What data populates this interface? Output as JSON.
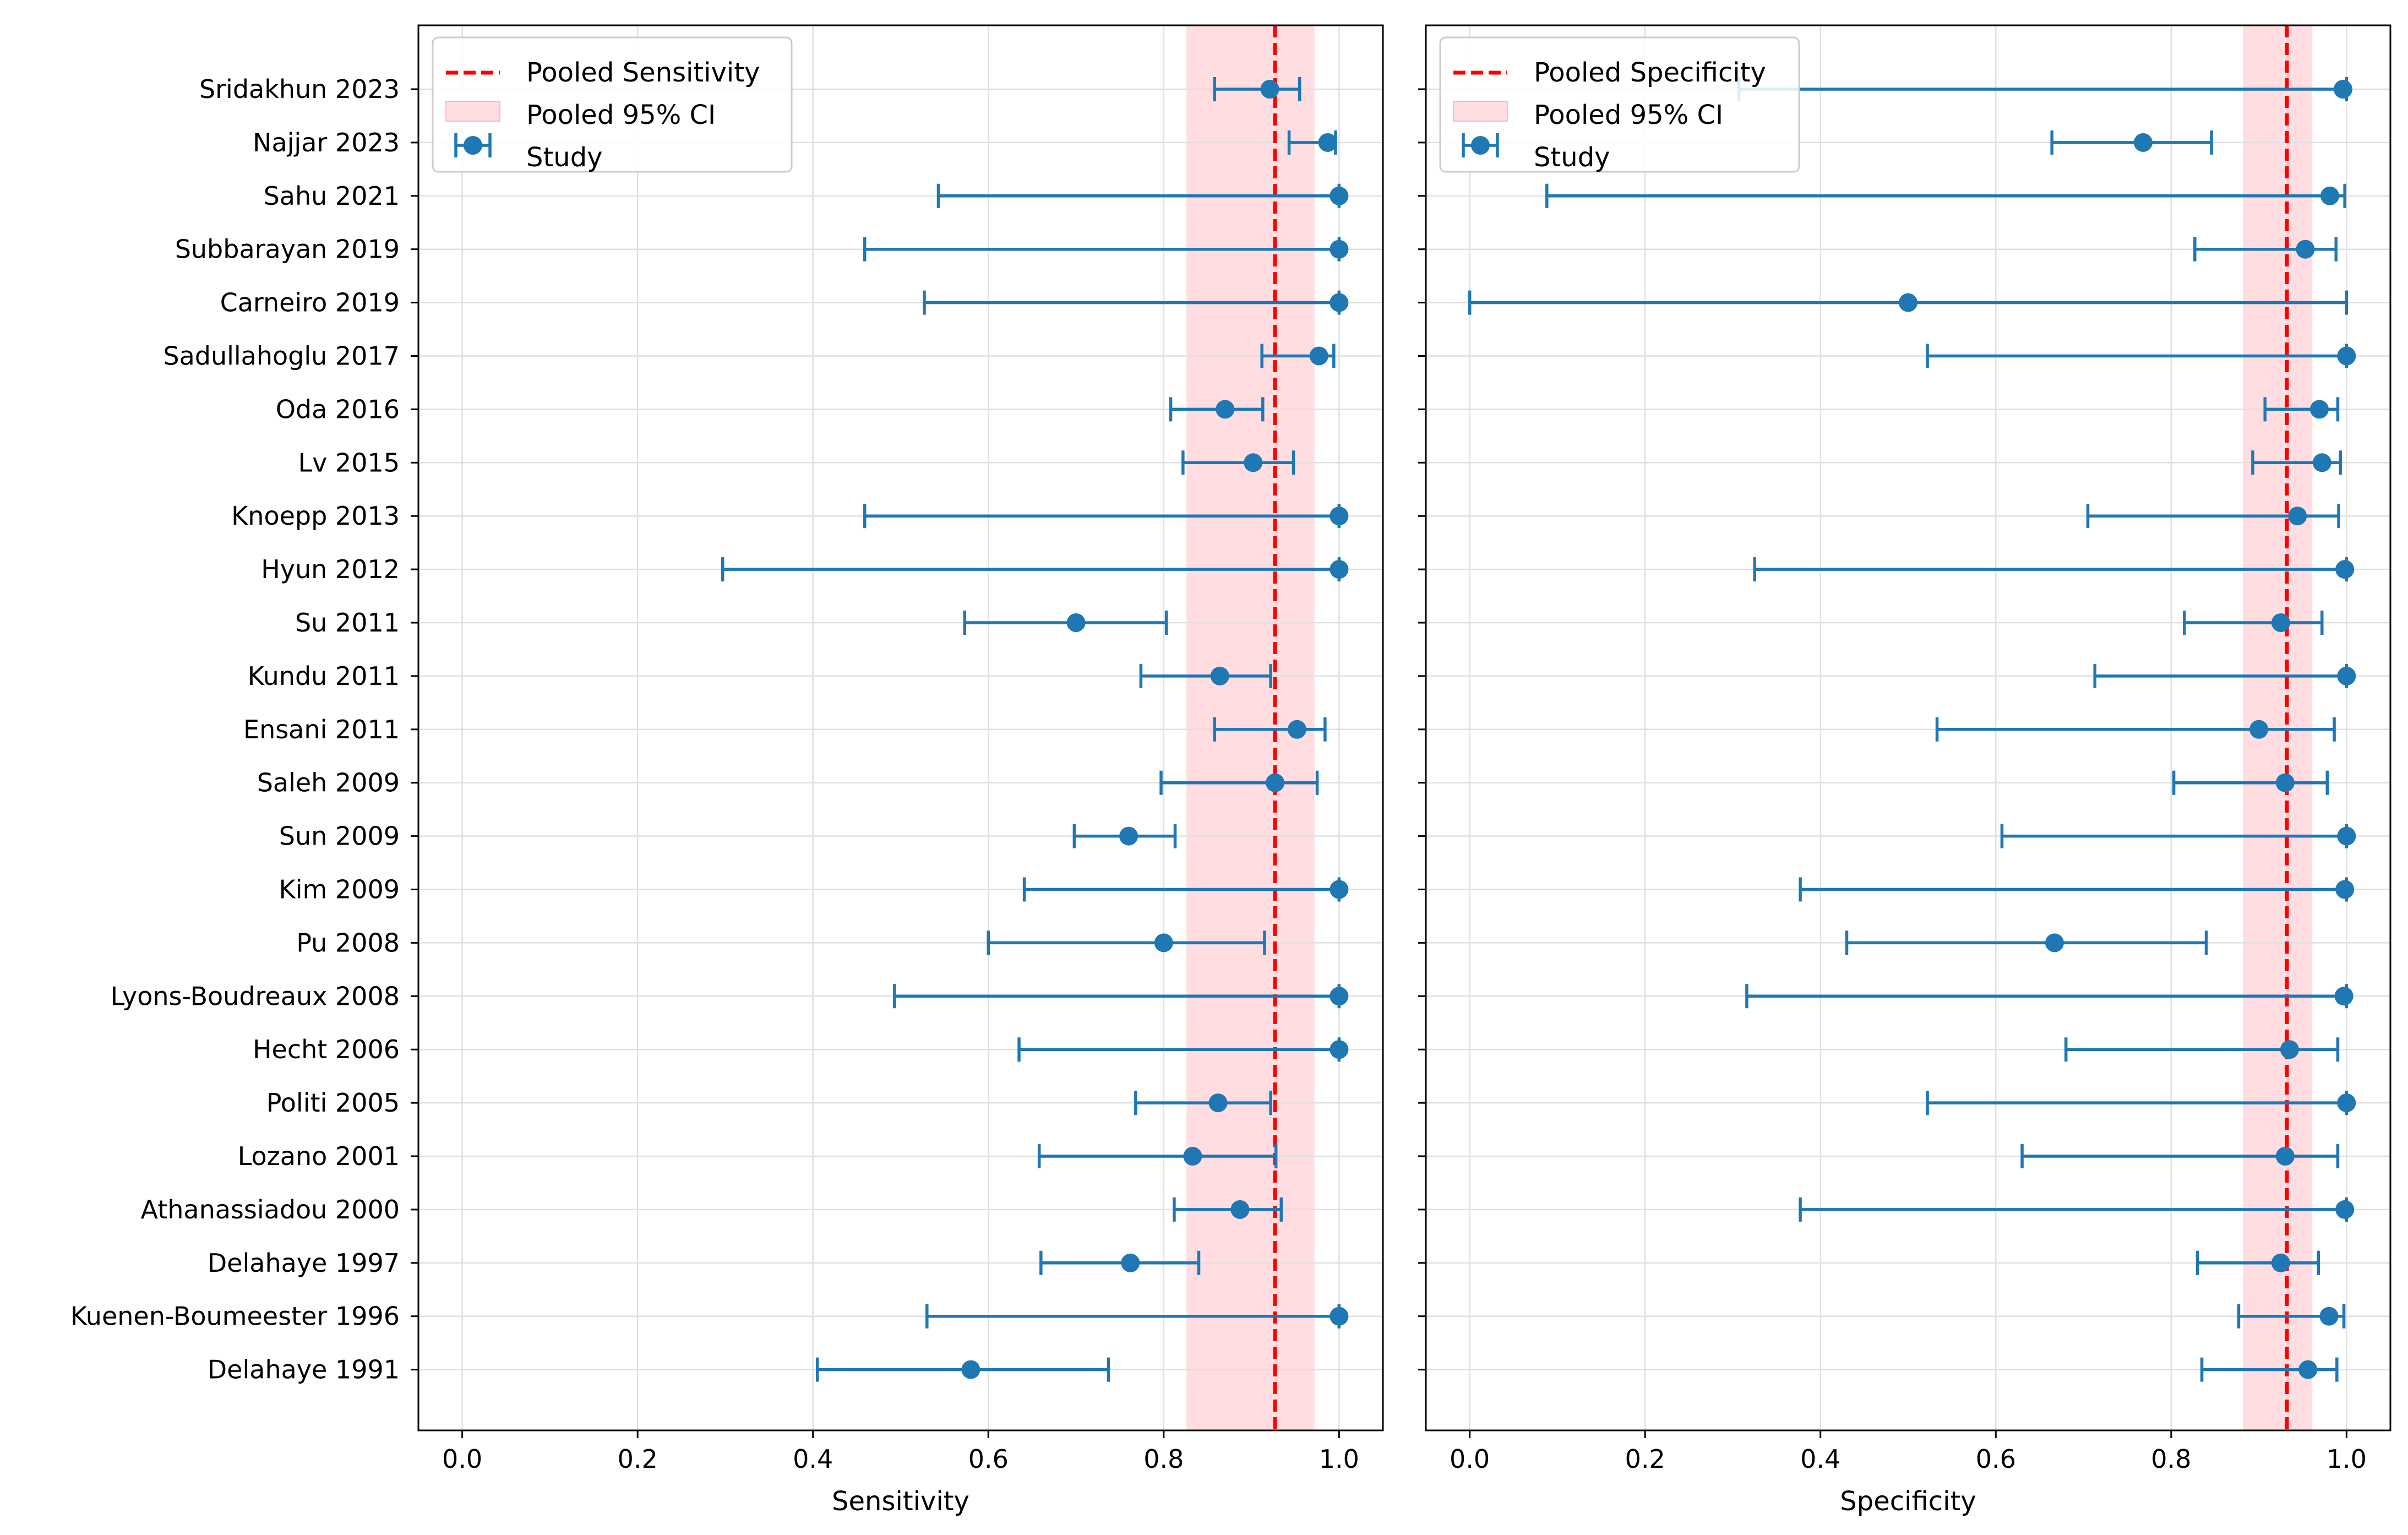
{
  "chart_data": [
    {
      "type": "forest",
      "xlabel": "Sensitivity",
      "xlim": [
        -0.05,
        1.05
      ],
      "xticks": [
        "0.0",
        "0.2",
        "0.4",
        "0.6",
        "0.8",
        "1.0"
      ],
      "grid": true,
      "pooled": {
        "estimate": 0.927,
        "ci_low": 0.826,
        "ci_high": 0.972
      },
      "legend": {
        "position": "top-left",
        "entries": [
          "Pooled Sensitivity",
          "Pooled 95% CI",
          "Study"
        ]
      },
      "studies": [
        {
          "name": "Sridakhun 2023",
          "estimate": 0.921,
          "low": 0.858,
          "high": 0.955
        },
        {
          "name": "Najjar 2023",
          "estimate": 0.987,
          "low": 0.943,
          "high": 0.996
        },
        {
          "name": "Sahu 2021",
          "estimate": 1.0,
          "low": 0.543,
          "high": 1.0
        },
        {
          "name": "Subbarayan 2019",
          "estimate": 1.0,
          "low": 0.459,
          "high": 1.0
        },
        {
          "name": "Carneiro 2019",
          "estimate": 1.0,
          "low": 0.527,
          "high": 1.0
        },
        {
          "name": "Sadullahoglu 2017",
          "estimate": 0.977,
          "low": 0.912,
          "high": 0.994
        },
        {
          "name": "Oda 2016",
          "estimate": 0.87,
          "low": 0.808,
          "high": 0.913
        },
        {
          "name": "Lv 2015",
          "estimate": 0.902,
          "low": 0.822,
          "high": 0.948
        },
        {
          "name": "Knoepp 2013",
          "estimate": 1.0,
          "low": 0.459,
          "high": 1.0
        },
        {
          "name": "Hyun 2012",
          "estimate": 1.0,
          "low": 0.297,
          "high": 1.0
        },
        {
          "name": "Su 2011",
          "estimate": 0.7,
          "low": 0.573,
          "high": 0.803
        },
        {
          "name": "Kundu 2011",
          "estimate": 0.864,
          "low": 0.774,
          "high": 0.922
        },
        {
          "name": "Ensani 2011",
          "estimate": 0.952,
          "low": 0.858,
          "high": 0.984
        },
        {
          "name": "Saleh 2009",
          "estimate": 0.927,
          "low": 0.797,
          "high": 0.975
        },
        {
          "name": "Sun 2009",
          "estimate": 0.76,
          "low": 0.698,
          "high": 0.813
        },
        {
          "name": "Kim 2009",
          "estimate": 1.0,
          "low": 0.641,
          "high": 1.0
        },
        {
          "name": "Pu 2008",
          "estimate": 0.8,
          "low": 0.6,
          "high": 0.915
        },
        {
          "name": "Lyons-Boudreaux 2008",
          "estimate": 1.0,
          "low": 0.493,
          "high": 1.0
        },
        {
          "name": "Hecht 2006",
          "estimate": 1.0,
          "low": 0.635,
          "high": 1.0
        },
        {
          "name": "Politi 2005",
          "estimate": 0.862,
          "low": 0.768,
          "high": 0.922
        },
        {
          "name": "Lozano 2001",
          "estimate": 0.833,
          "low": 0.658,
          "high": 0.928
        },
        {
          "name": "Athanassiadou 2000",
          "estimate": 0.887,
          "low": 0.812,
          "high": 0.934
        },
        {
          "name": "Delahaye 1997",
          "estimate": 0.762,
          "low": 0.66,
          "high": 0.84
        },
        {
          "name": "Kuenen-Boumeester 1996",
          "estimate": 1.0,
          "low": 0.53,
          "high": 1.0
        },
        {
          "name": "Delahaye 1991",
          "estimate": 0.58,
          "low": 0.405,
          "high": 0.737
        }
      ]
    },
    {
      "type": "forest",
      "xlabel": "Specificity",
      "xlim": [
        -0.05,
        1.05
      ],
      "xticks": [
        "0.0",
        "0.2",
        "0.4",
        "0.6",
        "0.8",
        "1.0"
      ],
      "grid": true,
      "pooled": {
        "estimate": 0.932,
        "ci_low": 0.882,
        "ci_high": 0.961
      },
      "legend": {
        "position": "top-left",
        "entries": [
          "Pooled Specificity",
          "Pooled 95% CI",
          "Study"
        ]
      },
      "studies": [
        {
          "name": "Sridakhun 2023",
          "estimate": 0.996,
          "low": 0.307,
          "high": 1.0
        },
        {
          "name": "Najjar 2023",
          "estimate": 0.768,
          "low": 0.664,
          "high": 0.846
        },
        {
          "name": "Sahu 2021",
          "estimate": 0.981,
          "low": 0.088,
          "high": 0.998
        },
        {
          "name": "Subbarayan 2019",
          "estimate": 0.953,
          "low": 0.827,
          "high": 0.988
        },
        {
          "name": "Carneiro 2019",
          "estimate": 0.5,
          "low": 0.0,
          "high": 1.0
        },
        {
          "name": "Sadullahoglu 2017",
          "estimate": 1.0,
          "low": 0.522,
          "high": 1.0
        },
        {
          "name": "Oda 2016",
          "estimate": 0.969,
          "low": 0.907,
          "high": 0.99
        },
        {
          "name": "Lv 2015",
          "estimate": 0.972,
          "low": 0.893,
          "high": 0.993
        },
        {
          "name": "Knoepp 2013",
          "estimate": 0.944,
          "low": 0.705,
          "high": 0.991
        },
        {
          "name": "Hyun 2012",
          "estimate": 0.998,
          "low": 0.325,
          "high": 1.0
        },
        {
          "name": "Su 2011",
          "estimate": 0.925,
          "low": 0.815,
          "high": 0.972
        },
        {
          "name": "Kundu 2011",
          "estimate": 1.0,
          "low": 0.713,
          "high": 1.0
        },
        {
          "name": "Ensani 2011",
          "estimate": 0.9,
          "low": 0.533,
          "high": 0.986
        },
        {
          "name": "Saleh 2009",
          "estimate": 0.93,
          "low": 0.803,
          "high": 0.978
        },
        {
          "name": "Sun 2009",
          "estimate": 1.0,
          "low": 0.607,
          "high": 1.0
        },
        {
          "name": "Kim 2009",
          "estimate": 0.998,
          "low": 0.377,
          "high": 1.0
        },
        {
          "name": "Pu 2008",
          "estimate": 0.667,
          "low": 0.43,
          "high": 0.84
        },
        {
          "name": "Lyons-Boudreaux 2008",
          "estimate": 0.997,
          "low": 0.316,
          "high": 1.0
        },
        {
          "name": "Hecht 2006",
          "estimate": 0.935,
          "low": 0.68,
          "high": 0.99
        },
        {
          "name": "Politi 2005",
          "estimate": 1.0,
          "low": 0.522,
          "high": 1.0
        },
        {
          "name": "Lozano 2001",
          "estimate": 0.93,
          "low": 0.63,
          "high": 0.99
        },
        {
          "name": "Athanassiadou 2000",
          "estimate": 0.998,
          "low": 0.377,
          "high": 1.0
        },
        {
          "name": "Delahaye 1997",
          "estimate": 0.925,
          "low": 0.83,
          "high": 0.968
        },
        {
          "name": "Kuenen-Boumeester 1996",
          "estimate": 0.98,
          "low": 0.877,
          "high": 0.997
        },
        {
          "name": "Delahaye 1991",
          "estimate": 0.956,
          "low": 0.835,
          "high": 0.989
        }
      ]
    }
  ],
  "colors": {
    "study": "#1f77b4",
    "pooled_line": "#ff0000",
    "ci_band": "#ffdde0",
    "grid": "#e0e0e0"
  }
}
